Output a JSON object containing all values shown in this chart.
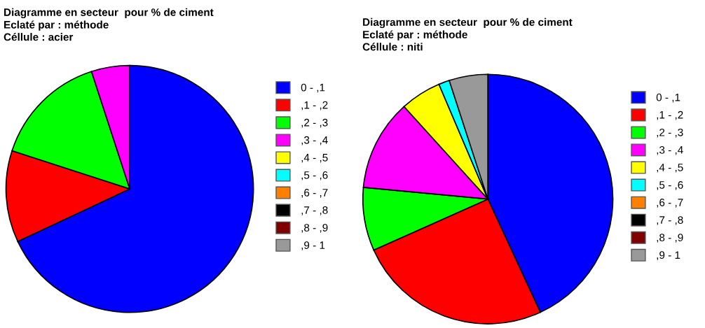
{
  "chart_data": [
    {
      "type": "pie",
      "title": "Diagramme en secteur  pour % de ciment",
      "subtitle": "Eclaté par : méthode\nCéllule : acier",
      "categories": [
        "0 - ,1",
        ",1 - ,2",
        ",2 - ,3",
        ",3 - ,4",
        ",4 - ,5",
        ",5 - ,6",
        ",6 - ,7",
        ",7 - ,8",
        ",8 - ,9",
        ",9 - 1"
      ],
      "values": [
        68,
        12,
        15,
        5,
        0,
        0,
        0,
        0,
        0,
        0
      ],
      "colors": [
        "#0000ff",
        "#ff0000",
        "#00ff00",
        "#ff00ff",
        "#ffff00",
        "#00ffff",
        "#ff8000",
        "#000000",
        "#800000",
        "#999999"
      ],
      "legend": "right"
    },
    {
      "type": "pie",
      "title": "Diagramme en secteur  pour % de ciment",
      "subtitle": "Eclaté par : méthode\nCéllule : niti",
      "categories": [
        "0 - ,1",
        ",1 - ,2",
        ",2 - ,3",
        ",3 - ,4",
        ",4 - ,5",
        ",5 - ,6",
        ",6 - ,7",
        ",7 - ,8",
        ",8 - ,9",
        ",9 - 1"
      ],
      "values": [
        43.1,
        25.2,
        8.2,
        11.8,
        5.3,
        1.4,
        0,
        0,
        0,
        5.0
      ],
      "colors": [
        "#0000ff",
        "#ff0000",
        "#00ff00",
        "#ff00ff",
        "#ffff00",
        "#00ffff",
        "#ff8000",
        "#000000",
        "#800000",
        "#999999"
      ],
      "legend": "right"
    }
  ]
}
